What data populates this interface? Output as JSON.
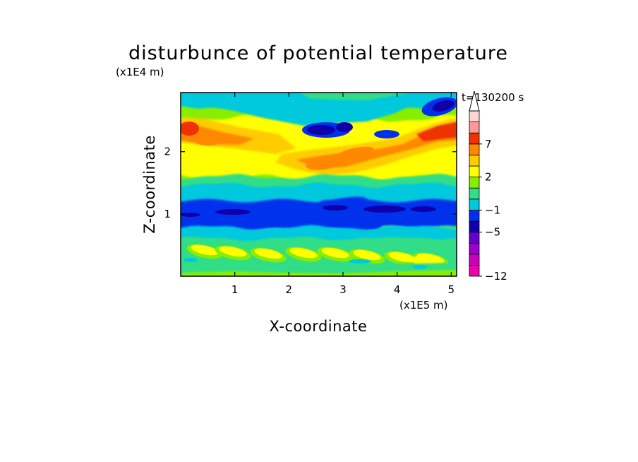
{
  "chart_data": {
    "type": "heatmap",
    "title": "disturbunce of potential temperature",
    "y_scale_note": "(x1E4 m)",
    "x_scale_note": "(x1E5 m)",
    "xlabel": "X-coordinate",
    "ylabel": "Z-coordinate",
    "time_label": "t=130200 s",
    "xlim": [
      0,
      5.1
    ],
    "ylim": [
      0,
      2.95
    ],
    "x_ticks": [
      {
        "value": 1,
        "label": "1"
      },
      {
        "value": 2,
        "label": "2"
      },
      {
        "value": 3,
        "label": "3"
      },
      {
        "value": 4,
        "label": "4"
      },
      {
        "value": 5,
        "label": "5"
      }
    ],
    "y_ticks": [
      {
        "value": 1,
        "label": "1"
      },
      {
        "value": 2,
        "label": "2"
      }
    ],
    "colorbar": {
      "levels": [
        -12,
        -11,
        -9,
        -7,
        -5,
        -3,
        -1,
        0,
        1,
        2,
        3,
        5,
        7,
        9,
        11
      ],
      "colors": [
        "#ee00aa",
        "#cc00bb",
        "#9900cc",
        "#6600cc",
        "#1000aa",
        "#0030ee",
        "#00c8dd",
        "#33dd88",
        "#88ee00",
        "#ffff00",
        "#ffcc00",
        "#ff8800",
        "#ee3300",
        "#ff9999",
        "#ffd4d4"
      ],
      "tick_labels": [
        {
          "value": -12,
          "label": "-12"
        },
        {
          "value": -5,
          "label": "-5"
        },
        {
          "value": -1,
          "label": "-1"
        },
        {
          "value": 2,
          "label": "2"
        },
        {
          "value": 7,
          "label": "7"
        }
      ],
      "extend": "max",
      "placement": "right"
    }
  }
}
